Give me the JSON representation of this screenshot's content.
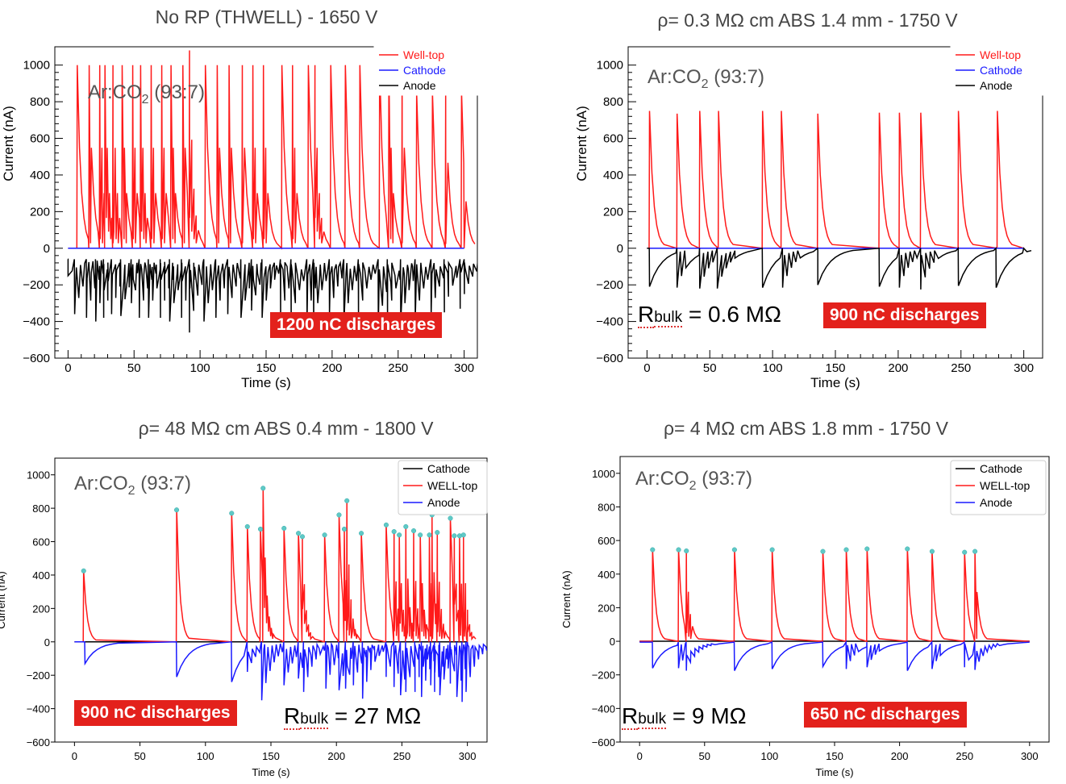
{
  "chart_data": [
    {
      "type": "line",
      "style": "root",
      "title": "No RP (THWELL) - 1650 V",
      "xlabel": "Time (s)",
      "ylabel": "Current (nA)",
      "xlim": [
        -10,
        310
      ],
      "ylim": [
        -600,
        1100
      ],
      "xticks": [
        0,
        50,
        100,
        150,
        200,
        250,
        300
      ],
      "yticks": [
        -600,
        -400,
        -200,
        0,
        200,
        400,
        600,
        800,
        1000
      ],
      "ytick_labels": [
        "−600",
        "−400",
        "−200",
        "0",
        "200",
        "400",
        "600",
        "800",
        "1000"
      ],
      "annotation_gas": "Ar:CO",
      "gas_sub": "2",
      "gas_suffix": " (93:7)",
      "badge": "1200 nC discharges",
      "legend": [
        "Well-top",
        "Cathode",
        "Anode"
      ],
      "series": [
        {
          "name": "Well-top",
          "color": "#ff1a1a",
          "kind": "pulse_pos",
          "peaks": [
            [
              7,
              1000
            ],
            [
              16,
              1000
            ],
            [
              24,
              1000
            ],
            [
              28,
              1000
            ],
            [
              34,
              1000
            ],
            [
              41,
              1000
            ],
            [
              49,
              1000
            ],
            [
              55,
              1000
            ],
            [
              63,
              1000
            ],
            [
              71,
              1000
            ],
            [
              78,
              1000
            ],
            [
              87,
              1000
            ],
            [
              92,
              1080
            ],
            [
              104,
              1000
            ],
            [
              113,
              1000
            ],
            [
              122,
              1000
            ],
            [
              132,
              1000
            ],
            [
              140,
              1000
            ],
            [
              148,
              1000
            ],
            [
              162,
              1000
            ],
            [
              170,
              1000
            ],
            [
              182,
              1000
            ],
            [
              187,
              1000
            ],
            [
              199,
              1000
            ],
            [
              210,
              1000
            ],
            [
              221,
              1000
            ],
            [
              236,
              1000
            ],
            [
              243,
              1000
            ],
            [
              253,
              1000
            ],
            [
              264,
              850
            ],
            [
              276,
              850
            ],
            [
              286,
              850
            ],
            [
              298,
              850
            ]
          ],
          "tau": 2.8,
          "x_end": 300
        },
        {
          "name": "Cathode",
          "color": "#1a1aff",
          "kind": "flat",
          "x_start": 0,
          "x_end": 300
        },
        {
          "name": "Anode",
          "color": "#000000",
          "kind": "pulse_neg",
          "peaks": [
            [
              0,
              -150
            ],
            [
              5,
              -360
            ],
            [
              14,
              -380
            ],
            [
              21,
              -400
            ],
            [
              27,
              -380
            ],
            [
              33,
              -360
            ],
            [
              40,
              -370
            ],
            [
              48,
              -300
            ],
            [
              54,
              -380
            ],
            [
              61,
              -380
            ],
            [
              70,
              -380
            ],
            [
              77,
              -400
            ],
            [
              86,
              -380
            ],
            [
              92,
              -460
            ],
            [
              103,
              -400
            ],
            [
              112,
              -380
            ],
            [
              121,
              -360
            ],
            [
              131,
              -380
            ],
            [
              139,
              -340
            ],
            [
              147,
              -380
            ],
            [
              161,
              -380
            ],
            [
              169,
              -400
            ],
            [
              181,
              -380
            ],
            [
              186,
              -400
            ],
            [
              198,
              -360
            ],
            [
              209,
              -400
            ],
            [
              220,
              -380
            ],
            [
              235,
              -420
            ],
            [
              242,
              -380
            ],
            [
              252,
              -400
            ],
            [
              263,
              -380
            ],
            [
              275,
              -360
            ],
            [
              285,
              -350
            ],
            [
              297,
              -330
            ]
          ],
          "tau": 9,
          "baseline": -60,
          "x_end": 300
        }
      ]
    },
    {
      "type": "line",
      "style": "root",
      "title": "ρ= 0.3 MΩ cm ABS 1.4 mm - 1750 V",
      "xlabel": "Time (s)",
      "ylabel": "Current (nA)",
      "xlim": [
        -15,
        315
      ],
      "ylim": [
        -600,
        1100
      ],
      "xticks": [
        0,
        50,
        100,
        150,
        200,
        250,
        300
      ],
      "yticks": [
        -600,
        -400,
        -200,
        0,
        200,
        400,
        600,
        800,
        1000
      ],
      "ytick_labels": [
        "−600",
        "−400",
        "−200",
        "0",
        "200",
        "400",
        "600",
        "800",
        "1000"
      ],
      "annotation_gas": "Ar:CO",
      "gas_sub": "2",
      "gas_suffix": " (93:7)",
      "badge": "900 nC discharges",
      "rbulk_name": "R",
      "rbulk_sub": "bulk",
      "rbulk_value": " = 0.6 MΩ",
      "legend": [
        "Well-top",
        "Cathode",
        "Anode"
      ],
      "series": [
        {
          "name": "Well-top",
          "color": "#ff1a1a",
          "kind": "pulse_pos",
          "peaks": [
            [
              2,
              750
            ],
            [
              24,
              735
            ],
            [
              42,
              750
            ],
            [
              57,
              750
            ],
            [
              92,
              750
            ],
            [
              107,
              750
            ],
            [
              136,
              735
            ],
            [
              185,
              740
            ],
            [
              201,
              740
            ],
            [
              218,
              740
            ],
            [
              248,
              750
            ],
            [
              279,
              750
            ]
          ],
          "tau": 3.2,
          "x_end": 300
        },
        {
          "name": "Cathode",
          "color": "#1a1aff",
          "kind": "flat",
          "x_start": 0,
          "x_end": 300
        },
        {
          "name": "Anode",
          "color": "#000000",
          "kind": "pulse_neg",
          "peaks": [
            [
              2,
              -210
            ],
            [
              24,
              -215
            ],
            [
              42,
              -220
            ],
            [
              56,
              -220
            ],
            [
              92,
              -215
            ],
            [
              108,
              -215
            ],
            [
              136,
              -200
            ],
            [
              185,
              -210
            ],
            [
              201,
              -215
            ],
            [
              218,
              -225
            ],
            [
              248,
              -205
            ],
            [
              278,
              -215
            ]
          ],
          "tau": 10,
          "baseline": 0,
          "x_end": 300
        }
      ]
    },
    {
      "type": "line",
      "style": "mpl",
      "title": "ρ= 48 MΩ cm ABS 0.4 mm - 1800 V",
      "xlabel": "Time (s)",
      "ylabel": "Current (nA)",
      "xlim": [
        -15,
        315
      ],
      "ylim": [
        -600,
        1100
      ],
      "xticks": [
        0,
        50,
        100,
        150,
        200,
        250,
        300
      ],
      "yticks": [
        -600,
        -400,
        -200,
        0,
        200,
        400,
        600,
        800,
        1000
      ],
      "ytick_labels": [
        "−600",
        "−400",
        "−200",
        "0",
        "200",
        "400",
        "600",
        "800",
        "1000"
      ],
      "annotation_gas": "Ar:CO",
      "gas_sub": "2",
      "gas_suffix": " (93:7)",
      "badge": "900 nC discharges",
      "rbulk_name": "R",
      "rbulk_sub": "bulk",
      "rbulk_value": " = 27 MΩ",
      "legend": [
        "Cathode",
        "WELL-top",
        "Anode"
      ],
      "series": [
        {
          "name": "Cathode",
          "color": "#000000",
          "kind": "flat",
          "x_start": 0,
          "x_end": 300
        },
        {
          "name": "WELL-top",
          "color": "#ff1a1a",
          "kind": "pulse_pos",
          "markers": true,
          "peaks": [
            [
              7,
              425
            ],
            [
              78,
              790
            ],
            [
              120,
              770
            ],
            [
              132,
              690
            ],
            [
              142,
              675
            ],
            [
              144,
              920
            ],
            [
              160,
              680
            ],
            [
              171,
              650
            ],
            [
              174,
              630
            ],
            [
              191,
              640
            ],
            [
              202,
              760
            ],
            [
              206,
              675
            ],
            [
              208,
              845
            ],
            [
              219,
              650
            ],
            [
              238,
              700
            ],
            [
              244,
              660
            ],
            [
              248,
              640
            ],
            [
              253,
              690
            ],
            [
              259,
              665
            ],
            [
              264,
              640
            ],
            [
              271,
              640
            ],
            [
              273,
              760
            ],
            [
              277,
              655
            ],
            [
              287,
              740
            ],
            [
              290,
              635
            ],
            [
              294,
              635
            ],
            [
              297,
              640
            ]
          ],
          "tau": 2.6,
          "x_end": 300
        },
        {
          "name": "Anode",
          "color": "#1a1aff",
          "kind": "pulse_neg",
          "peaks": [
            [
              8,
              -130
            ],
            [
              78,
              -210
            ],
            [
              120,
              -240
            ],
            [
              132,
              -180
            ],
            [
              143,
              -350
            ],
            [
              160,
              -260
            ],
            [
              171,
              -220
            ],
            [
              175,
              -300
            ],
            [
              192,
              -280
            ],
            [
              202,
              -290
            ],
            [
              207,
              -280
            ],
            [
              213,
              -260
            ],
            [
              220,
              -340
            ],
            [
              238,
              -210
            ],
            [
              244,
              -270
            ],
            [
              249,
              -320
            ],
            [
              253,
              -300
            ],
            [
              260,
              -300
            ],
            [
              265,
              -330
            ],
            [
              272,
              -260
            ],
            [
              275,
              -300
            ],
            [
              279,
              -320
            ],
            [
              287,
              -250
            ],
            [
              292,
              -330
            ],
            [
              296,
              -360
            ],
            [
              299,
              -300
            ]
          ],
          "tau": 9,
          "baseline": 0,
          "x_end": 300
        }
      ]
    },
    {
      "type": "line",
      "style": "mpl",
      "title": "ρ= 4 MΩ cm ABS 1.8 mm - 1750 V",
      "xlabel": "Time (s)",
      "ylabel": "Current (nA)",
      "xlim": [
        -15,
        315
      ],
      "ylim": [
        -600,
        1100
      ],
      "xticks": [
        0,
        50,
        100,
        150,
        200,
        250,
        300
      ],
      "yticks": [
        -600,
        -400,
        -200,
        0,
        200,
        400,
        600,
        800,
        1000
      ],
      "ytick_labels": [
        "−600",
        "−400",
        "−200",
        "0",
        "200",
        "400",
        "600",
        "800",
        "1000"
      ],
      "annotation_gas": "Ar:CO",
      "gas_sub": "2",
      "gas_suffix": " (93:7)",
      "badge": "650 nC discharges",
      "rbulk_name": "R",
      "rbulk_sub": "bulk",
      "rbulk_value": " = 9 MΩ",
      "legend": [
        "Cathode",
        "WELL-top",
        "Anode"
      ],
      "series": [
        {
          "name": "Cathode",
          "color": "#000000",
          "kind": "flat",
          "x_start": 0,
          "x_end": 300
        },
        {
          "name": "WELL-top",
          "color": "#ff1a1a",
          "kind": "pulse_pos",
          "markers": true,
          "peaks": [
            [
              10,
              545
            ],
            [
              30,
              545
            ],
            [
              36,
              538
            ],
            [
              73,
              545
            ],
            [
              102,
              545
            ],
            [
              141,
              535
            ],
            [
              159,
              545
            ],
            [
              175,
              550
            ],
            [
              206,
              550
            ],
            [
              225,
              535
            ],
            [
              250,
              530
            ],
            [
              258,
              535
            ]
          ],
          "tau": 2.6,
          "x_end": 300
        },
        {
          "name": "Anode",
          "color": "#1a1aff",
          "kind": "pulse_neg",
          "peaks": [
            [
              10,
              -160
            ],
            [
              30,
              -160
            ],
            [
              36,
              -175
            ],
            [
              73,
              -175
            ],
            [
              102,
              -165
            ],
            [
              141,
              -150
            ],
            [
              159,
              -165
            ],
            [
              175,
              -155
            ],
            [
              206,
              -175
            ],
            [
              225,
              -165
            ],
            [
              250,
              -155
            ],
            [
              258,
              -170
            ]
          ],
          "tau": 9,
          "baseline": -5,
          "x_end": 300
        }
      ]
    }
  ]
}
